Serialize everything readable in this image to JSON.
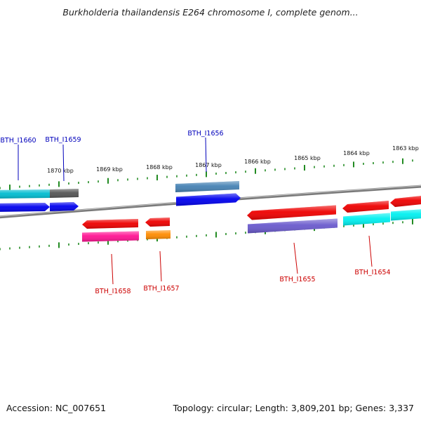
{
  "title": "Burkholderia thailandensis E264 chromosome I, complete genom...",
  "footer": {
    "accession": "Accession: NC_007651",
    "summary": "Topology: circular; Length: 3,809,201 bp; Genes: 3,337"
  },
  "colors": {
    "backbone": "#7a7a7a",
    "tick": "#228b22",
    "label_top": "#0000bb",
    "label_bottom": "#cc0000"
  },
  "ticks_top": [
    "1870 kbp",
    "1869 kbp",
    "1868 kbp",
    "1867 kbp",
    "1866 kbp",
    "1865 kbp",
    "1864 kbp",
    "1863 kbp"
  ],
  "labels_top": [
    "BTH_I1660",
    "BTH_I1659",
    "BTH_I1656"
  ],
  "labels_bottom": [
    "BTH_I1658",
    "BTH_I1657",
    "BTH_I1655",
    "BTH_I1654"
  ],
  "features": [
    {
      "name": "BTH_I1660",
      "color": "#00bcd0"
    },
    {
      "name": "BTH_I1660",
      "color": "#0000ee"
    },
    {
      "name": "BTH_I1659",
      "color": "#555555"
    },
    {
      "name": "BTH_I1659",
      "color": "#0000ee"
    },
    {
      "name": "BTH_I1656",
      "color": "#4682b4"
    },
    {
      "name": "BTH_I1656",
      "color": "#0000ee"
    },
    {
      "name": "BTH_I1658",
      "color": "#ee0000"
    },
    {
      "name": "BTH_I1658",
      "color": "#ff1493"
    },
    {
      "name": "BTH_I1657",
      "color": "#ee0000"
    },
    {
      "name": "BTH_I1657",
      "color": "#ff8c00"
    },
    {
      "name": "BTH_I1655",
      "color": "#ee0000"
    },
    {
      "name": "BTH_I1655",
      "color": "#6a5acd"
    },
    {
      "name": "BTH_I1654",
      "color": "#ee0000"
    },
    {
      "name": "BTH_I1654",
      "color": "#00f0f0"
    },
    {
      "name": "",
      "color": "#ee0000"
    },
    {
      "name": "",
      "color": "#00f0f0"
    }
  ]
}
